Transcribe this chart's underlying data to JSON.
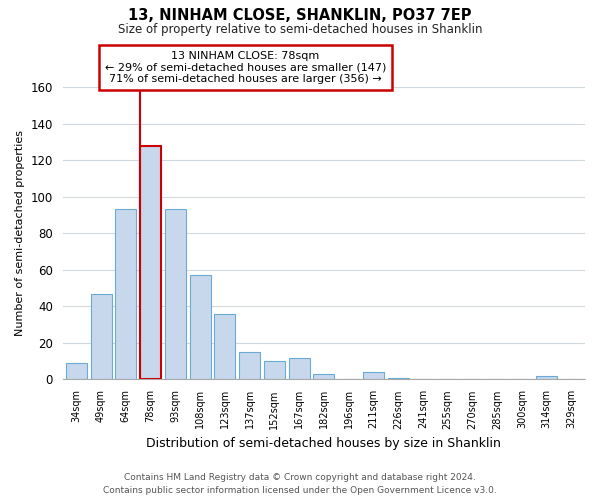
{
  "title": "13, NINHAM CLOSE, SHANKLIN, PO37 7EP",
  "subtitle": "Size of property relative to semi-detached houses in Shanklin",
  "xlabel": "Distribution of semi-detached houses by size in Shanklin",
  "ylabel": "Number of semi-detached properties",
  "categories": [
    "34sqm",
    "49sqm",
    "64sqm",
    "78sqm",
    "93sqm",
    "108sqm",
    "123sqm",
    "137sqm",
    "152sqm",
    "167sqm",
    "182sqm",
    "196sqm",
    "211sqm",
    "226sqm",
    "241sqm",
    "255sqm",
    "270sqm",
    "285sqm",
    "300sqm",
    "314sqm",
    "329sqm"
  ],
  "values": [
    9,
    47,
    93,
    128,
    93,
    57,
    36,
    15,
    10,
    12,
    3,
    0,
    4,
    1,
    0,
    0,
    0,
    0,
    0,
    2,
    0
  ],
  "bar_color": "#c8d8ec",
  "bar_edge_color": "#6aaad4",
  "highlight_bar_index": 3,
  "highlight_bar_color": "#cc0000",
  "annotation_title": "13 NINHAM CLOSE: 78sqm",
  "annotation_line1": "← 29% of semi-detached houses are smaller (147)",
  "annotation_line2": "71% of semi-detached houses are larger (356) →",
  "annotation_box_color": "#ffffff",
  "annotation_box_edge_color": "#cc0000",
  "ylim": [
    0,
    160
  ],
  "yticks": [
    0,
    20,
    40,
    60,
    80,
    100,
    120,
    140,
    160
  ],
  "footer_line1": "Contains HM Land Registry data © Crown copyright and database right 2024.",
  "footer_line2": "Contains public sector information licensed under the Open Government Licence v3.0.",
  "background_color": "#ffffff",
  "grid_color": "#d0d8e0"
}
